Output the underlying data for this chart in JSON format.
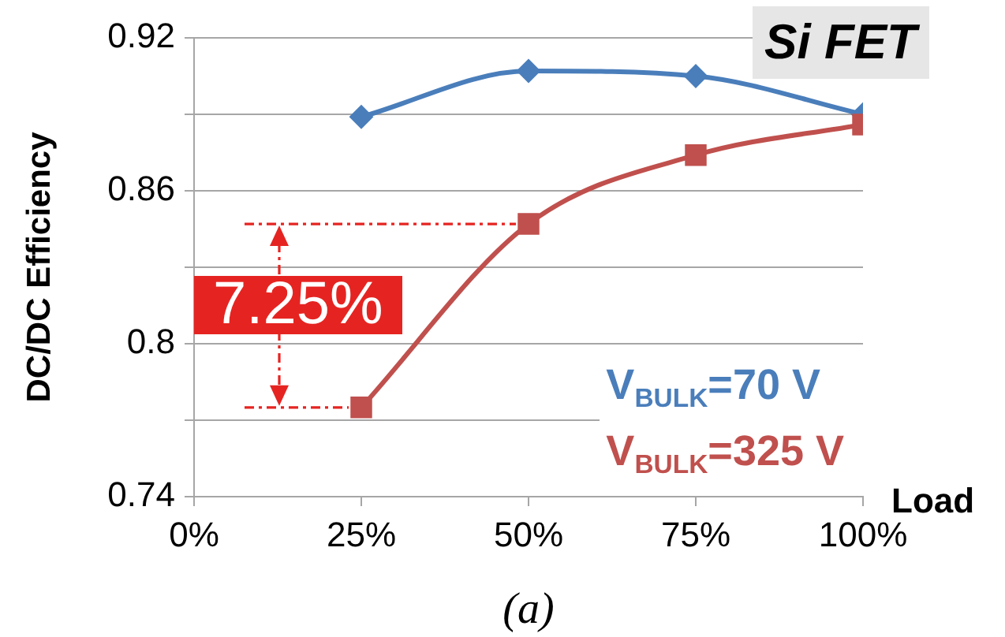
{
  "chart_data": {
    "type": "line",
    "title": "Si FET",
    "xlabel": "Load",
    "ylabel": "DC/DC Efficiency",
    "annotations": [
      "7.25%",
      "(a)"
    ],
    "x": [
      25,
      50,
      75,
      100
    ],
    "series": [
      {
        "name": "V$_{BULK}$=70 V",
        "color": "#4a7ebb",
        "marker": "diamond",
        "values": [
          0.889,
          0.907,
          0.905,
          0.89
        ]
      },
      {
        "name": "V$_{BULK}$=325 V",
        "color": "#c0504d",
        "marker": "square",
        "values": [
          0.775,
          0.847,
          0.874,
          0.886
        ]
      }
    ],
    "xlim": [
      0,
      100
    ],
    "xticks": [
      {
        "value": 0,
        "label": "0%"
      },
      {
        "value": 25,
        "label": "25%"
      },
      {
        "value": 50,
        "label": "50%"
      },
      {
        "value": 75,
        "label": "75%"
      },
      {
        "value": 100,
        "label": "100%"
      }
    ],
    "ylim": [
      0.74,
      0.92
    ],
    "yticks": [
      0.74,
      {
        "value": 0.77,
        "label": null
      },
      0.8,
      {
        "value": 0.83,
        "label": null
      },
      0.86,
      {
        "value": 0.89,
        "label": null
      },
      0.92
    ],
    "grid": "y",
    "legend": "bottom right"
  }
}
